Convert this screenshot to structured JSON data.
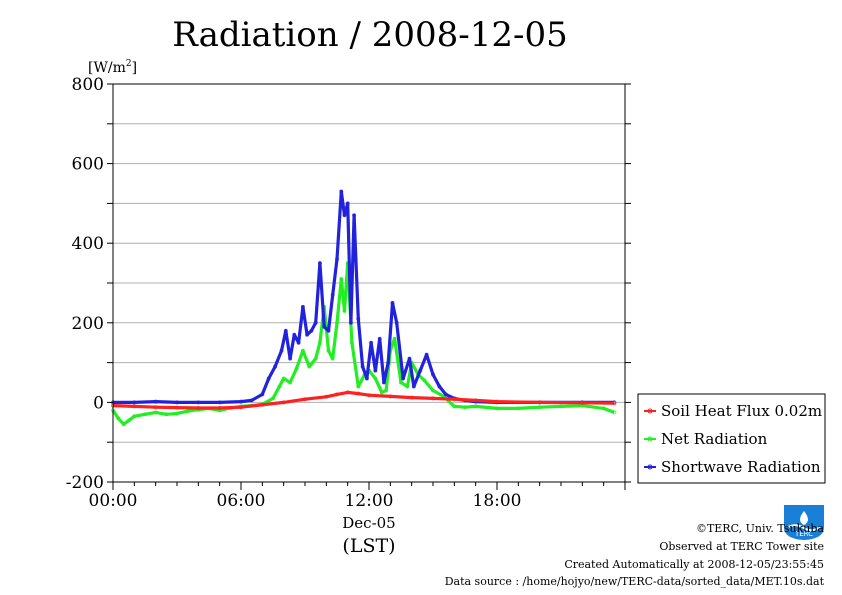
{
  "chart_data": {
    "type": "line",
    "title": "Radiation / 2008-12-05",
    "ylabel_unit": "[W/m",
    "ylabel_sup": "2",
    "ylabel_close": "]",
    "ylim": [
      -200,
      800
    ],
    "yticks": [
      -200,
      0,
      200,
      400,
      600,
      800
    ],
    "xlim": [
      0,
      24
    ],
    "xticks": [
      {
        "value": 0,
        "label": "00:00"
      },
      {
        "value": 6,
        "label": "06:00"
      },
      {
        "value": 12,
        "label": "12:00"
      },
      {
        "value": 18,
        "label": "18:00"
      }
    ],
    "x_date_label": "Dec-05",
    "xlabel": "(LST)",
    "grid": true,
    "legend_position": "right",
    "series": [
      {
        "name": "Soil Heat Flux 0.02m",
        "color": "#ff2020",
        "x": [
          0,
          1,
          2,
          3,
          4,
          5,
          6,
          7,
          8,
          9,
          10,
          10.5,
          11,
          11.5,
          12,
          13,
          14,
          15,
          16,
          17,
          18,
          20,
          22,
          23.5
        ],
        "values": [
          -8,
          -10,
          -12,
          -13,
          -14,
          -14,
          -12,
          -6,
          0,
          8,
          14,
          20,
          25,
          22,
          18,
          15,
          12,
          10,
          8,
          5,
          2,
          0,
          -1,
          -2
        ]
      },
      {
        "name": "Net Radiation",
        "color": "#22ee22",
        "x": [
          0,
          0.25,
          0.5,
          0.75,
          1,
          1.5,
          2,
          2.5,
          3,
          3.5,
          4,
          4.5,
          5,
          5.5,
          6,
          6.5,
          7,
          7.5,
          7.8,
          8,
          8.3,
          8.6,
          8.9,
          9.2,
          9.5,
          9.7,
          9.9,
          10.1,
          10.3,
          10.5,
          10.7,
          10.85,
          11,
          11.2,
          11.5,
          11.8,
          12,
          12.3,
          12.6,
          12.8,
          13,
          13.2,
          13.5,
          13.8,
          14,
          14.3,
          14.6,
          15,
          15.5,
          16,
          16.5,
          17,
          18,
          19,
          20,
          21,
          22,
          23,
          23.5
        ],
        "values": [
          -20,
          -40,
          -55,
          -45,
          -35,
          -30,
          -25,
          -30,
          -28,
          -22,
          -18,
          -15,
          -20,
          -14,
          -10,
          -8,
          -5,
          10,
          40,
          60,
          50,
          85,
          130,
          90,
          110,
          150,
          240,
          130,
          110,
          200,
          310,
          230,
          350,
          150,
          40,
          70,
          80,
          60,
          25,
          30,
          130,
          160,
          50,
          40,
          100,
          70,
          55,
          30,
          15,
          -10,
          -12,
          -10,
          -15,
          -15,
          -12,
          -10,
          -8,
          -15,
          -25
        ]
      },
      {
        "name": "Shortwave Radiation",
        "color": "#2222dd",
        "x": [
          0,
          1,
          2,
          3,
          4,
          5,
          6,
          6.5,
          7,
          7.3,
          7.6,
          7.9,
          8.1,
          8.3,
          8.5,
          8.7,
          8.9,
          9.1,
          9.3,
          9.5,
          9.7,
          9.9,
          10.1,
          10.3,
          10.5,
          10.7,
          10.85,
          11,
          11.15,
          11.3,
          11.5,
          11.7,
          11.9,
          12.1,
          12.3,
          12.5,
          12.7,
          12.9,
          13.1,
          13.3,
          13.6,
          13.9,
          14.1,
          14.4,
          14.7,
          15,
          15.3,
          15.6,
          16,
          16.5,
          17,
          18,
          20,
          22,
          23.5
        ],
        "values": [
          0,
          0,
          2,
          0,
          0,
          0,
          2,
          5,
          20,
          60,
          90,
          130,
          180,
          110,
          170,
          150,
          240,
          170,
          180,
          200,
          350,
          190,
          180,
          270,
          360,
          530,
          470,
          500,
          200,
          470,
          210,
          90,
          60,
          150,
          80,
          160,
          50,
          100,
          250,
          200,
          60,
          110,
          40,
          80,
          120,
          70,
          40,
          20,
          10,
          5,
          2,
          0,
          0,
          0,
          0
        ]
      }
    ]
  },
  "footer": {
    "copyright": "©TERC, Univ. Tsukuba",
    "site": "Observed at TERC Tower site",
    "created": "Created Automatically at 2008-12-05/23:55:45",
    "source": "Data source : /home/hojyo/new/TERC-data/sorted_data/MET.10s.dat",
    "logo_text": "TERC",
    "logo_color": "#1a7fd6"
  }
}
